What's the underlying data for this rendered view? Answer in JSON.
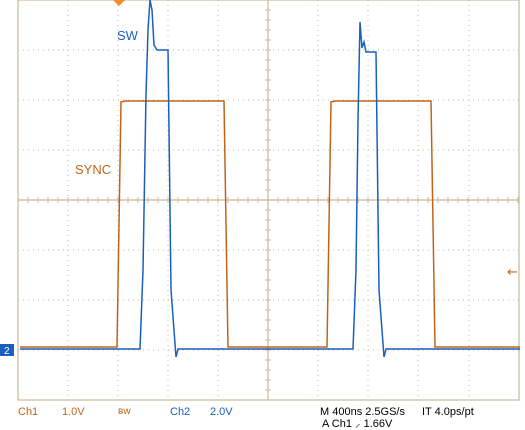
{
  "trace_labels": {
    "sw": "SW",
    "sync": "SYNC"
  },
  "markers": {
    "ch2_ground": "2",
    "trigger_level_icon": "left-arrow-icon",
    "trigger_position_icon": "orange-triangle-icon"
  },
  "status_bar": {
    "ch1_name": "Ch1",
    "ch1_scale": "1.0V",
    "bw": "ʙw",
    "ch2_name": "Ch2",
    "ch2_scale": "2.0V",
    "timebase": "M 400ns 2.5GS/s",
    "interp": "IT 4.0ps/pt",
    "trigger": "A  Ch1  ⸝  1.66V"
  },
  "colors": {
    "ch1": "#c0641a",
    "ch2": "#1a5fbf",
    "grid": "#c8b89a",
    "background": "#ffffff"
  }
}
